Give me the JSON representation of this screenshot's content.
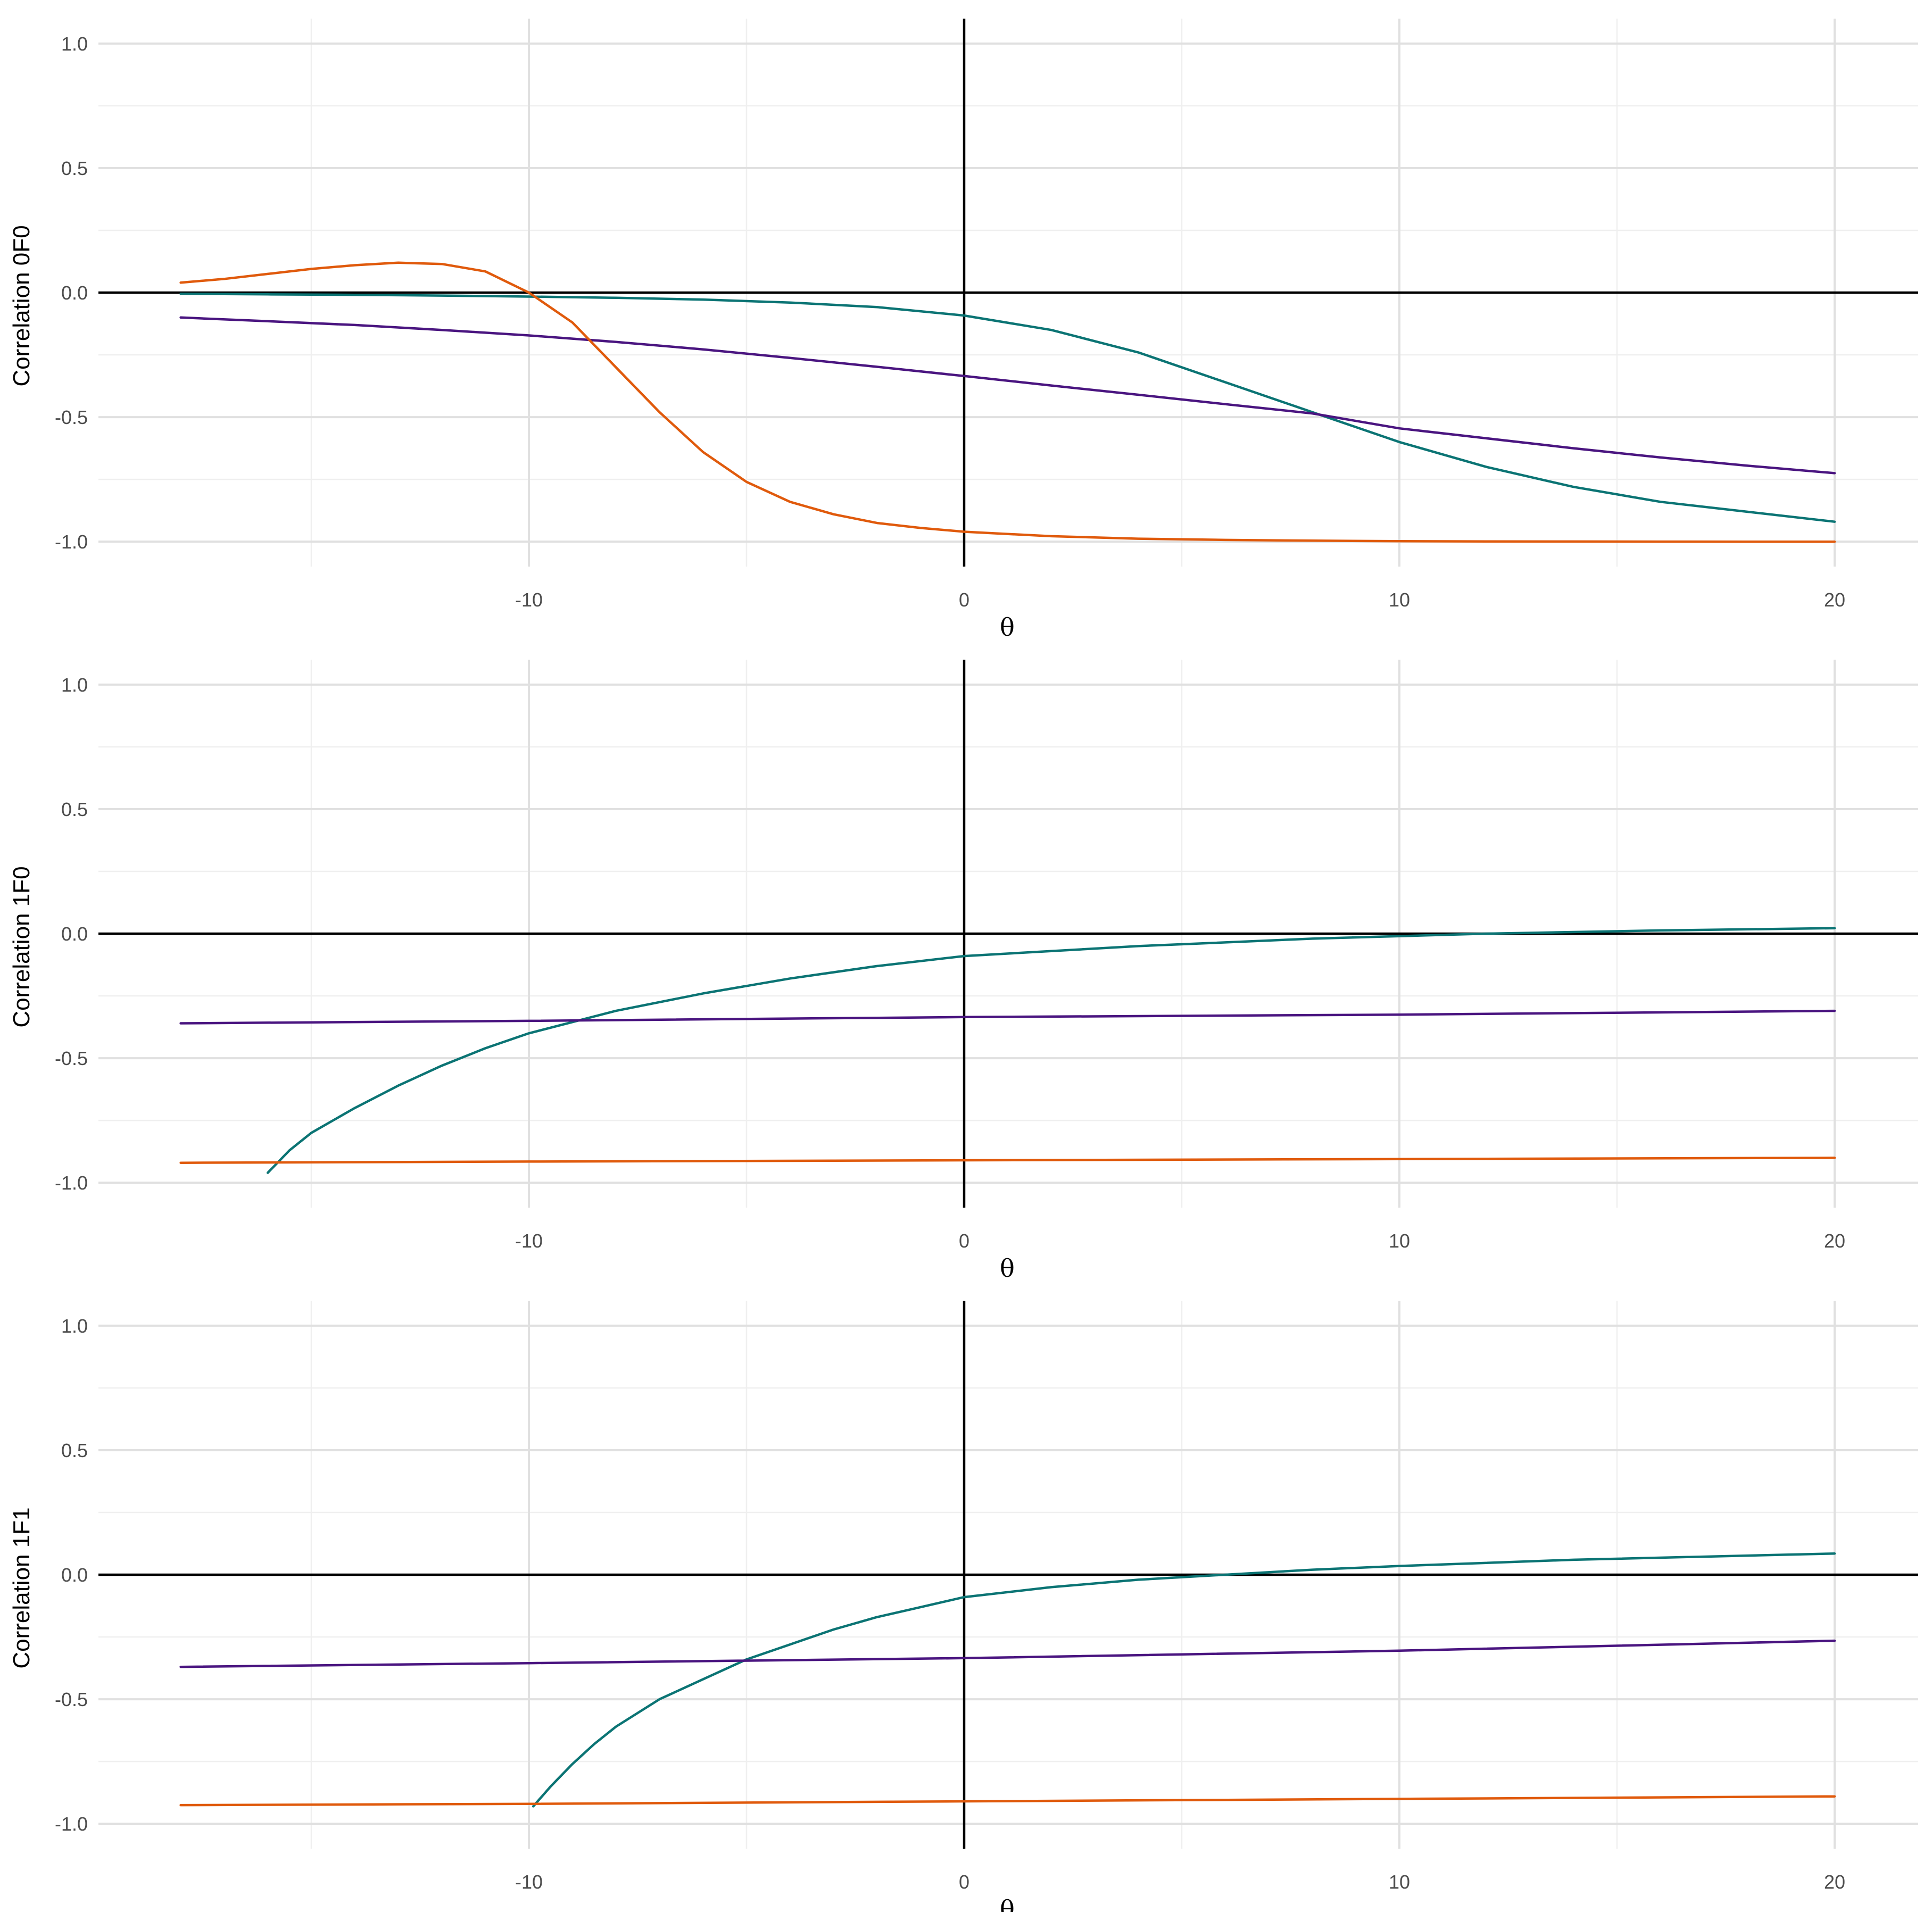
{
  "chart_data": [
    {
      "type": "line",
      "title": "",
      "xlabel": "θ",
      "ylabel": "Correlation 0F0",
      "xlim": [
        -19,
        22
      ],
      "ylim": [
        -1.1,
        1.1
      ],
      "x_ticks": [
        -10,
        0,
        10,
        20
      ],
      "x_tick_labels": [
        "-10",
        "0",
        "10",
        "20"
      ],
      "y_ticks": [
        1.0,
        0.5,
        0.0,
        -0.5,
        -1.0
      ],
      "y_tick_labels": [
        "1.0",
        "0.5",
        "0.0",
        "-0.5",
        "-1.0"
      ],
      "reference_lines": {
        "x": 0,
        "y": 0
      },
      "series": [
        {
          "name": "teal",
          "color": "#0b7474",
          "x": [
            -18,
            -16,
            -14,
            -12,
            -10,
            -8,
            -6,
            -4,
            -2,
            0,
            2,
            4,
            6,
            8,
            10,
            12,
            14,
            16,
            18,
            20
          ],
          "y": [
            -0.005,
            -0.007,
            -0.009,
            -0.012,
            -0.016,
            -0.021,
            -0.028,
            -0.04,
            -0.058,
            -0.092,
            -0.15,
            -0.24,
            -0.36,
            -0.48,
            -0.6,
            -0.7,
            -0.78,
            -0.84,
            -0.88,
            -0.92
          ]
        },
        {
          "name": "purple",
          "color": "#4a1580",
          "x": [
            -18,
            -16,
            -14,
            -12,
            -10,
            -8,
            -6,
            -4,
            -2,
            0,
            2,
            4,
            6,
            8,
            10,
            12,
            14,
            16,
            18,
            20
          ],
          "y": [
            -0.1,
            -0.115,
            -0.13,
            -0.15,
            -0.172,
            -0.198,
            -0.228,
            -0.262,
            -0.298,
            -0.335,
            -0.373,
            -0.41,
            -0.448,
            -0.485,
            -0.545,
            -0.585,
            -0.625,
            -0.662,
            -0.695,
            -0.725
          ]
        },
        {
          "name": "orange",
          "color": "#e05a0c",
          "x": [
            -18,
            -17,
            -16,
            -15,
            -14,
            -13,
            -12,
            -11,
            -10,
            -9,
            -8,
            -7,
            -6,
            -5,
            -4,
            -3,
            -2,
            -1,
            0,
            2,
            4,
            6,
            8,
            10,
            12,
            14,
            16,
            18,
            20
          ],
          "y": [
            0.04,
            0.055,
            0.075,
            0.095,
            0.11,
            0.12,
            0.115,
            0.085,
            0.0,
            -0.12,
            -0.3,
            -0.48,
            -0.64,
            -0.76,
            -0.84,
            -0.89,
            -0.925,
            -0.945,
            -0.96,
            -0.978,
            -0.988,
            -0.993,
            -0.996,
            -0.998,
            -0.999,
            -0.9995,
            -0.9998,
            -1.0,
            -1.0
          ]
        }
      ]
    },
    {
      "type": "line",
      "title": "",
      "xlabel": "θ",
      "ylabel": "Correlation 1F0",
      "xlim": [
        -19,
        22
      ],
      "ylim": [
        -1.1,
        1.1
      ],
      "x_ticks": [
        -10,
        0,
        10,
        20
      ],
      "x_tick_labels": [
        "-10",
        "0",
        "10",
        "20"
      ],
      "y_ticks": [
        1.0,
        0.5,
        0.0,
        -0.5,
        -1.0
      ],
      "y_tick_labels": [
        "1.0",
        "0.5",
        "0.0",
        "-0.5",
        "-1.0"
      ],
      "reference_lines": {
        "x": 0,
        "y": 0
      },
      "series": [
        {
          "name": "teal",
          "color": "#0b7474",
          "x": [
            -16,
            -15.5,
            -15,
            -14,
            -13,
            -12,
            -11,
            -10,
            -8,
            -6,
            -4,
            -2,
            0,
            4,
            8,
            12,
            16,
            20
          ],
          "y": [
            -0.96,
            -0.87,
            -0.8,
            -0.7,
            -0.61,
            -0.53,
            -0.46,
            -0.4,
            -0.31,
            -0.24,
            -0.18,
            -0.13,
            -0.09,
            -0.05,
            -0.02,
            0.0,
            0.013,
            0.022
          ]
        },
        {
          "name": "purple",
          "color": "#4a1580",
          "x": [
            -18,
            -10,
            0,
            10,
            20
          ],
          "y": [
            -0.36,
            -0.35,
            -0.335,
            -0.325,
            -0.31
          ]
        },
        {
          "name": "orange",
          "color": "#e05a0c",
          "x": [
            -18,
            -10,
            0,
            10,
            20
          ],
          "y": [
            -0.92,
            -0.915,
            -0.91,
            -0.905,
            -0.9
          ]
        }
      ]
    },
    {
      "type": "line",
      "title": "",
      "xlabel": "θ",
      "ylabel": "Correlation 1F1",
      "xlim": [
        -19,
        22
      ],
      "ylim": [
        -1.1,
        1.1
      ],
      "x_ticks": [
        -10,
        0,
        10,
        20
      ],
      "x_tick_labels": [
        "-10",
        "0",
        "10",
        "20"
      ],
      "y_ticks": [
        1.0,
        0.5,
        0.0,
        -0.5,
        -1.0
      ],
      "y_tick_labels": [
        "1.0",
        "0.5",
        "0.0",
        "-0.5",
        "-1.0"
      ],
      "reference_lines": {
        "x": 0,
        "y": 0
      },
      "series": [
        {
          "name": "teal",
          "color": "#0b7474",
          "x": [
            -9.9,
            -9.5,
            -9,
            -8.5,
            -8,
            -7,
            -6,
            -5,
            -4,
            -3,
            -2,
            -1,
            0,
            2,
            4,
            6,
            8,
            10,
            14,
            20
          ],
          "y": [
            -0.93,
            -0.85,
            -0.76,
            -0.68,
            -0.61,
            -0.5,
            -0.42,
            -0.34,
            -0.28,
            -0.22,
            -0.17,
            -0.13,
            -0.09,
            -0.05,
            -0.02,
            0.0,
            0.02,
            0.035,
            0.06,
            0.085
          ]
        },
        {
          "name": "purple",
          "color": "#4a1580",
          "x": [
            -18,
            -10,
            0,
            10,
            20
          ],
          "y": [
            -0.37,
            -0.355,
            -0.335,
            -0.305,
            -0.265
          ]
        },
        {
          "name": "orange",
          "color": "#e05a0c",
          "x": [
            -18,
            -10,
            0,
            10,
            20
          ],
          "y": [
            -0.925,
            -0.92,
            -0.91,
            -0.9,
            -0.89
          ]
        }
      ]
    }
  ]
}
